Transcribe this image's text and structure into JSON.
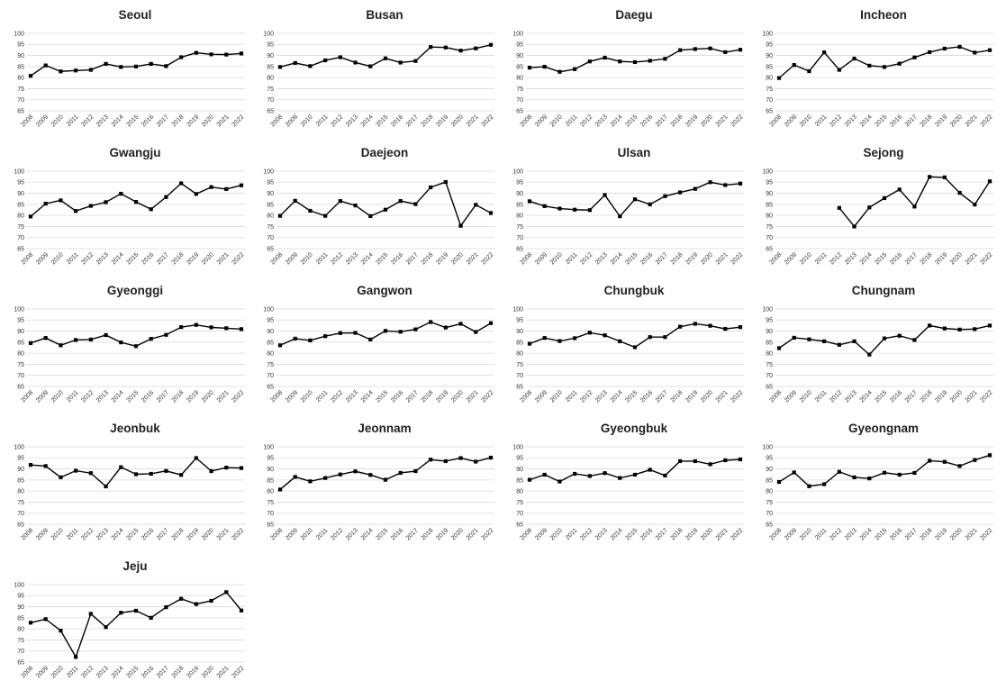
{
  "chart_data": {
    "type": "line",
    "x": [
      "2008",
      "2009",
      "2010",
      "2011",
      "2012",
      "2013",
      "2014",
      "2015",
      "2016",
      "2017",
      "2018",
      "2019",
      "2020",
      "2021",
      "2022"
    ],
    "ylim": [
      65,
      100
    ],
    "yticks": [
      65,
      70,
      75,
      80,
      85,
      90,
      95,
      100
    ],
    "grid": true,
    "marker": "square",
    "line_color": "#000000",
    "panels": [
      {
        "title": "Seoul",
        "values": [
          80.8,
          85.5,
          82.8,
          83.2,
          83.5,
          86.2,
          84.8,
          85.0,
          86.2,
          85.2,
          89.2,
          91.2,
          90.5,
          90.4,
          90.9
        ]
      },
      {
        "title": "Busan",
        "values": [
          84.8,
          86.6,
          85.2,
          87.8,
          89.2,
          86.8,
          85.1,
          88.7,
          86.8,
          87.5,
          93.8,
          93.6,
          92.2,
          93.2,
          94.8
        ]
      },
      {
        "title": "Daegu",
        "values": [
          84.5,
          84.9,
          82.6,
          83.8,
          87.3,
          89.0,
          87.3,
          87.0,
          87.6,
          88.5,
          92.4,
          92.9,
          93.2,
          91.5,
          92.6
        ]
      },
      {
        "title": "Incheon",
        "values": [
          79.8,
          85.7,
          82.9,
          91.4,
          83.5,
          88.6,
          85.4,
          84.8,
          86.3,
          89.1,
          91.5,
          93.1,
          93.9,
          91.3,
          92.4
        ]
      },
      {
        "title": "Gwangju",
        "values": [
          79.5,
          85.3,
          86.8,
          82.0,
          84.3,
          86.0,
          89.8,
          86.1,
          82.8,
          88.3,
          94.5,
          89.7,
          92.8,
          91.9,
          93.6
        ]
      },
      {
        "title": "Daejeon",
        "values": [
          79.8,
          86.6,
          82.1,
          79.8,
          86.5,
          84.5,
          79.7,
          82.6,
          86.5,
          85.1,
          92.7,
          95.1,
          75.3,
          84.8,
          81.1
        ]
      },
      {
        "title": "Ulsan",
        "values": [
          86.4,
          84.2,
          83.1,
          82.6,
          82.4,
          89.2,
          79.6,
          87.3,
          85.0,
          88.7,
          90.4,
          92.0,
          95.0,
          93.7,
          94.4
        ]
      },
      {
        "title": "Sejong",
        "values": [
          null,
          null,
          null,
          null,
          83.4,
          75.0,
          83.6,
          87.8,
          91.7,
          84.0,
          97.4,
          97.2,
          90.2,
          84.9,
          95.4
        ]
      },
      {
        "title": "Gyeonggi",
        "values": [
          84.6,
          86.9,
          83.6,
          86.0,
          86.2,
          88.2,
          84.9,
          83.2,
          86.5,
          88.3,
          91.8,
          92.8,
          91.7,
          91.3,
          90.9
        ]
      },
      {
        "title": "Gangwon",
        "values": [
          83.6,
          86.6,
          85.8,
          87.7,
          89.1,
          89.2,
          86.2,
          90.1,
          89.7,
          90.8,
          94.1,
          91.6,
          93.3,
          89.6,
          93.6
        ]
      },
      {
        "title": "Chungbuk",
        "values": [
          84.3,
          86.9,
          85.5,
          86.8,
          89.3,
          88.1,
          85.4,
          82.7,
          87.3,
          87.3,
          92.0,
          93.3,
          92.4,
          91.0,
          91.8
        ]
      },
      {
        "title": "Chungnam",
        "values": [
          82.3,
          87.0,
          86.3,
          85.4,
          83.8,
          85.4,
          79.4,
          86.7,
          87.9,
          86.0,
          92.5,
          91.2,
          90.7,
          90.9,
          92.5
        ]
      },
      {
        "title": "Jeonbuk",
        "values": [
          91.8,
          91.3,
          86.2,
          89.2,
          88.1,
          82.1,
          90.8,
          87.6,
          87.8,
          89.1,
          87.3,
          94.9,
          89.0,
          90.6,
          90.4
        ]
      },
      {
        "title": "Jeonnam",
        "values": [
          80.7,
          86.4,
          84.4,
          85.9,
          87.5,
          88.9,
          87.3,
          85.1,
          88.2,
          89.0,
          94.2,
          93.5,
          94.9,
          93.3,
          95.1
        ]
      },
      {
        "title": "Gyeongbuk",
        "values": [
          85.1,
          87.4,
          84.3,
          87.8,
          86.8,
          88.1,
          85.9,
          87.4,
          89.6,
          87.0,
          93.5,
          93.5,
          92.1,
          93.9,
          94.3
        ]
      },
      {
        "title": "Gyeongnam",
        "values": [
          84.1,
          88.4,
          82.2,
          83.1,
          88.7,
          86.2,
          85.7,
          88.3,
          87.4,
          88.2,
          93.7,
          93.2,
          91.3,
          94.0,
          96.2
        ]
      },
      {
        "title": "Jeju",
        "values": [
          82.8,
          84.4,
          79.2,
          67.3,
          86.8,
          80.8,
          87.3,
          88.2,
          85.0,
          89.8,
          93.6,
          91.2,
          92.7,
          96.6,
          88.3
        ]
      }
    ]
  }
}
